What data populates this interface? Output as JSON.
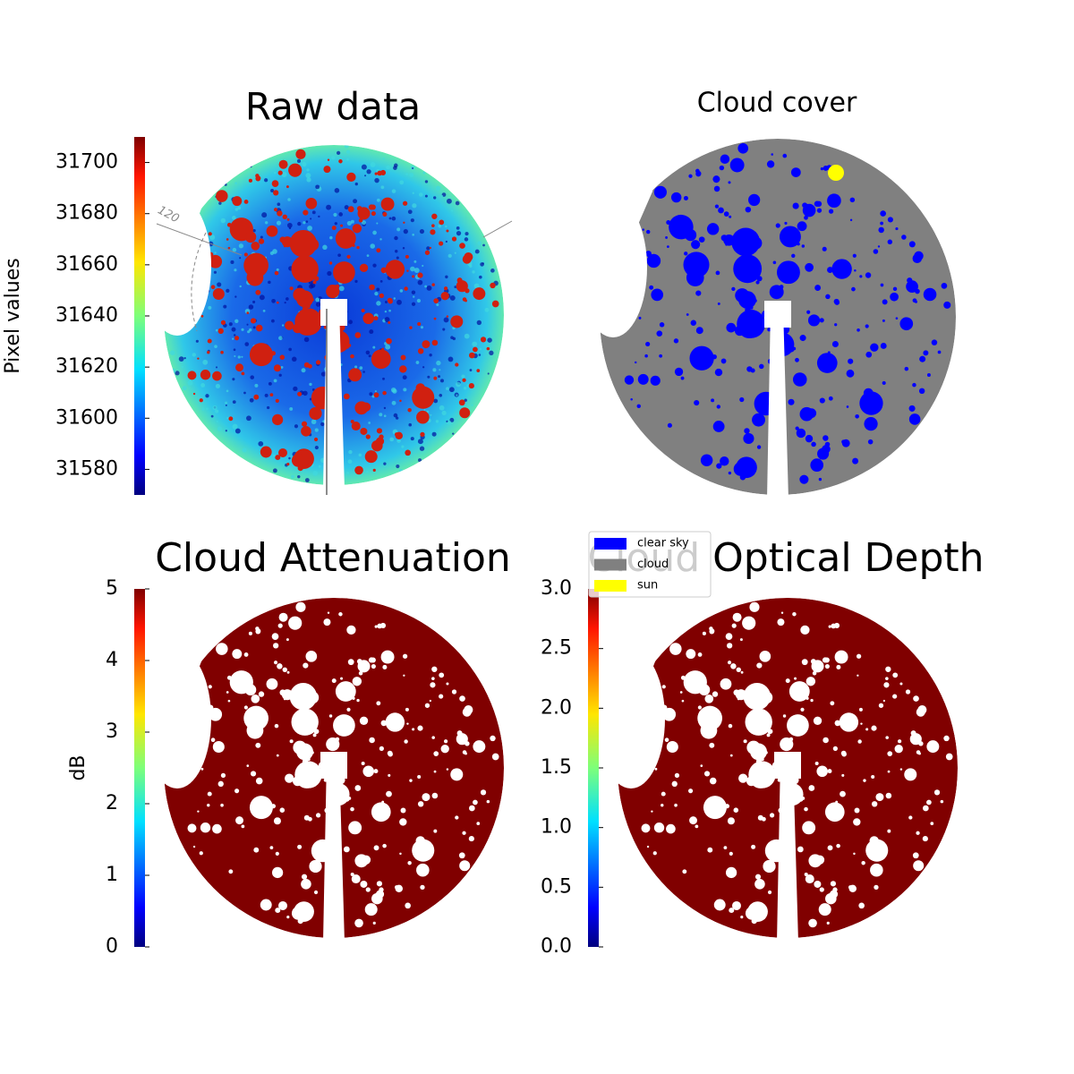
{
  "chart_data": [
    {
      "type": "image",
      "title": "Raw data",
      "annotation": "120",
      "colorbar": {
        "label": "Pixel values",
        "lim": [
          31570,
          31710
        ],
        "ticks": [
          31580,
          31600,
          31620,
          31640,
          31660,
          31680,
          31700
        ]
      }
    },
    {
      "type": "image",
      "title": "Cloud cover",
      "series": [
        {
          "name": "clear sky",
          "color": "#0000ff"
        },
        {
          "name": "cloud",
          "color": "#808080"
        },
        {
          "name": "sun",
          "color": "#ffff00"
        }
      ]
    },
    {
      "type": "image",
      "title": "Cloud Attenuation",
      "colorbar": {
        "label": "dB",
        "lim": [
          0,
          5
        ],
        "ticks": [
          0,
          1,
          2,
          3,
          4,
          5
        ]
      }
    },
    {
      "type": "image",
      "title": "Cloud Optical Depth",
      "colorbar": {
        "lim": [
          0,
          3
        ],
        "ticks": [
          {
            "value": 0,
            "label": "0.0"
          },
          0.5,
          {
            "value": 1,
            "label": "1.0"
          },
          1.5,
          {
            "value": 2,
            "label": "2.0"
          },
          2.5,
          {
            "value": 3,
            "label": "3.0"
          }
        ]
      }
    }
  ]
}
